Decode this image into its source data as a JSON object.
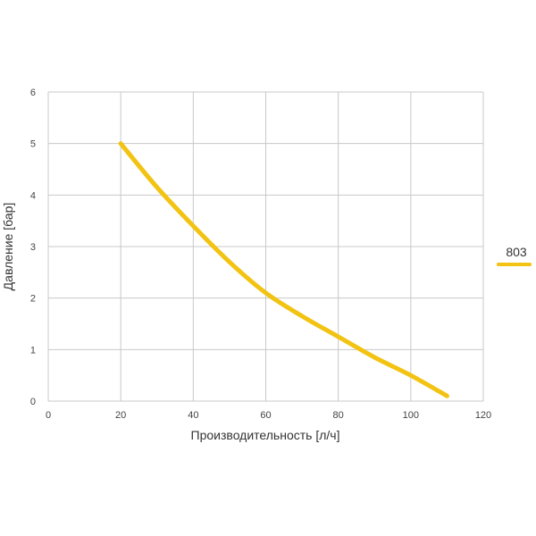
{
  "chart_data": {
    "type": "line",
    "title": "",
    "xlabel": "Производительность [л/ч]",
    "ylabel": "Давление [бар]",
    "xlim": [
      0,
      120
    ],
    "ylim": [
      0,
      6
    ],
    "xticks": [
      0,
      20,
      40,
      60,
      80,
      100,
      120
    ],
    "yticks": [
      0,
      1,
      2,
      3,
      4,
      5,
      6
    ],
    "grid": true,
    "legend_position": "right",
    "series": [
      {
        "name": "803",
        "color": "#F2C312",
        "x": [
          20,
          30,
          40,
          50,
          60,
          70,
          80,
          90,
          100,
          110
        ],
        "y": [
          5.0,
          4.15,
          3.4,
          2.7,
          2.1,
          1.65,
          1.25,
          0.85,
          0.5,
          0.1
        ]
      }
    ]
  }
}
